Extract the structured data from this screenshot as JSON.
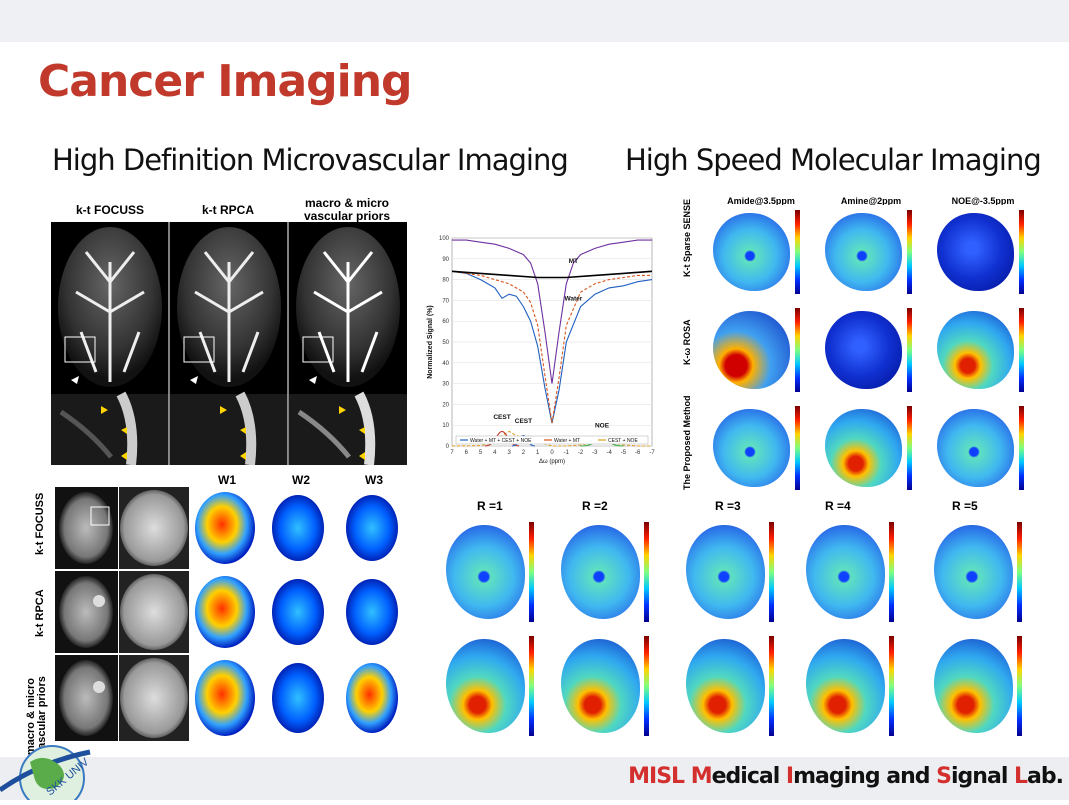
{
  "slide": {
    "title": "Cancer Imaging",
    "left_heading": "High Definition Microvascular Imaging",
    "right_heading": "High Speed Molecular Imaging"
  },
  "angio": {
    "columns": [
      "k-t FOCUSS",
      "k-t RPCA",
      "macro & micro vascular priors"
    ]
  },
  "tumor": {
    "rows": [
      "k-t FOCUSS",
      "k-t RPCA",
      "macro & micro vascular priors"
    ],
    "weight_labels": [
      "W1",
      "W2",
      "W3"
    ]
  },
  "spectrum_chart": {
    "chart_data": {
      "type": "line",
      "xlabel": "Δω (ppm)",
      "ylabel": "Normalized Signal (%)",
      "xlim": [
        7,
        -7
      ],
      "ylim": [
        0,
        100
      ],
      "x_ticks": [
        "7",
        "6",
        "5",
        "4",
        "3",
        "2",
        "1",
        "0",
        "-1",
        "-2",
        "-3",
        "-4",
        "-5",
        "-6",
        "-7"
      ],
      "y_ticks": [
        "0",
        "10",
        "20",
        "30",
        "40",
        "50",
        "60",
        "70",
        "80",
        "90",
        "100"
      ],
      "annotations": [
        "MT",
        "Water",
        "CEST",
        "CEST",
        "NOE"
      ],
      "legend": [
        "Water + MT + CEST + NOE",
        "Water + MT",
        "CEST + NOE"
      ],
      "colors": {
        "full": "#1f5fc0",
        "water_mt": "#d9541a",
        "cest_noe": "#e0a020",
        "water": "#7030a0",
        "mt": "#000000",
        "cest": "#c0392b",
        "noe": "#3cb043"
      },
      "series": [
        {
          "name": "Water + MT + CEST + NOE",
          "x": [
            7,
            6,
            5,
            4,
            3.5,
            3,
            2.5,
            2,
            1.5,
            1,
            0.5,
            0,
            -0.5,
            -1,
            -2,
            -3,
            -4,
            -5,
            -6,
            -7
          ],
          "y": [
            84,
            83,
            80,
            76,
            71,
            73,
            72,
            67,
            60,
            48,
            28,
            11,
            27,
            50,
            67,
            73,
            76,
            77,
            79,
            80
          ]
        },
        {
          "name": "Water + MT",
          "x": [
            7,
            6,
            5,
            4,
            3,
            2,
            1.5,
            1,
            0.5,
            0,
            -0.5,
            -1,
            -2,
            -3,
            -4,
            -5,
            -6,
            -7
          ],
          "y": [
            84,
            83,
            82,
            80,
            78,
            74,
            69,
            58,
            34,
            11,
            33,
            58,
            74,
            78,
            80,
            81,
            82,
            82
          ]
        },
        {
          "name": "Water",
          "x": [
            7,
            6,
            5,
            4,
            3,
            2,
            1.5,
            1,
            0.5,
            0,
            -0.5,
            -1,
            -1.5,
            -2,
            -3,
            -4,
            -5,
            -6,
            -7
          ],
          "y": [
            99,
            99,
            98,
            97,
            95,
            92,
            88,
            78,
            55,
            30,
            55,
            78,
            88,
            92,
            95,
            97,
            98,
            99,
            99
          ]
        },
        {
          "name": "MT",
          "x": [
            7,
            5,
            3,
            1,
            0,
            -1,
            -3,
            -5,
            -7
          ],
          "y": [
            84,
            83,
            82,
            81,
            81,
            81,
            82,
            83,
            84
          ]
        },
        {
          "name": "CEST + NOE",
          "x": [
            7,
            5,
            4,
            3.5,
            3,
            2.5,
            2,
            1.5,
            1,
            0,
            -1,
            -2,
            -3,
            -3.5,
            -4,
            -5,
            -6,
            -7
          ],
          "y": [
            0,
            0.2,
            2,
            5,
            7,
            5,
            4,
            5,
            2,
            0,
            0,
            0.5,
            2,
            3,
            2,
            0.5,
            0,
            0
          ]
        }
      ]
    }
  },
  "molecular": {
    "columns": [
      "Amide@3.5ppm",
      "Amine@2ppm",
      "NOE@-3.5ppm"
    ],
    "rows": [
      "K-t Sparse SENSE",
      "K-ω ROSA",
      "The Proposed Method"
    ],
    "r_labels": [
      "R =1",
      "R =2",
      "R =3",
      "R =4",
      "R =5"
    ]
  },
  "footer": {
    "logo_text": "SKK UNIV",
    "lab_parts": [
      "MISL ",
      "M",
      "edical ",
      "I",
      "maging and ",
      "S",
      "ignal ",
      "L",
      "ab."
    ]
  }
}
